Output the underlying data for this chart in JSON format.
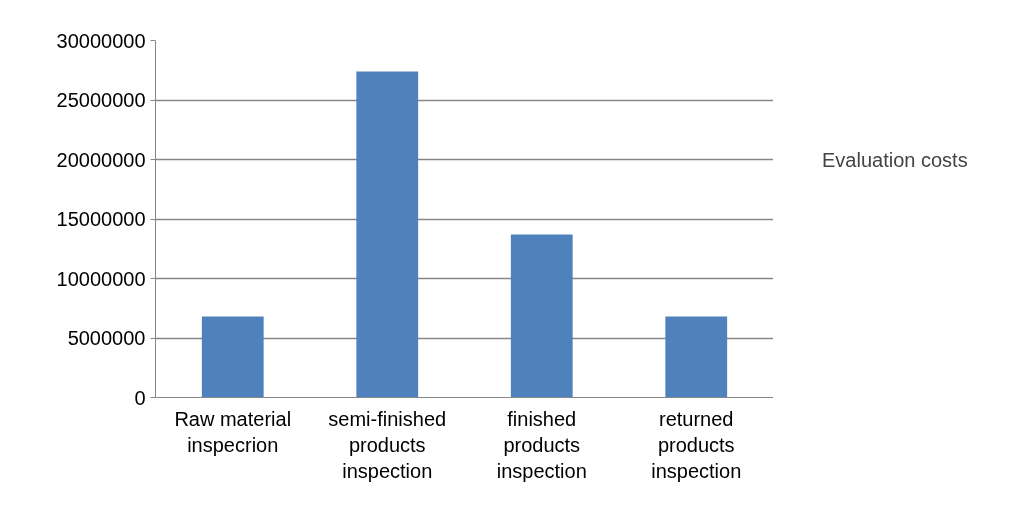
{
  "chart_data": {
    "type": "bar",
    "categories": [
      "Raw material\ninspecrion",
      "semi-finished\nproducts\ninspection",
      "finished\nproducts\ninspection",
      "returned\nproducts\ninspection"
    ],
    "series": [
      {
        "name": "Evaluation costs",
        "color": "#4f81bd",
        "values": [
          6800000,
          27400000,
          13700000,
          6800000
        ]
      }
    ],
    "ylim": [
      0,
      30000000
    ],
    "yticks": [
      0,
      5000000,
      10000000,
      15000000,
      20000000,
      25000000,
      30000000
    ],
    "grid": "y",
    "legend": "right"
  }
}
